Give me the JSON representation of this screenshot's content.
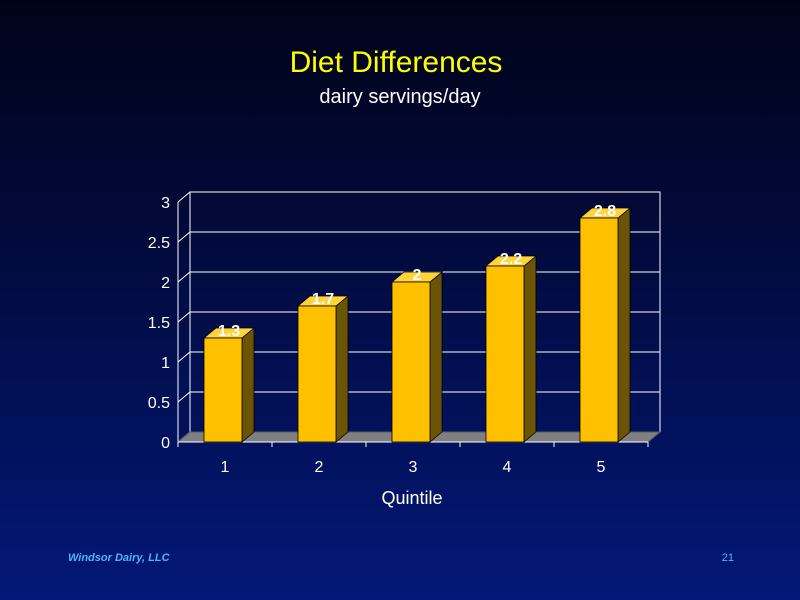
{
  "slide": {
    "footer_left": "Windsor Dairy, LLC",
    "page_number": "21"
  },
  "colors": {
    "title": "#ffff00",
    "bar_front": "#ffc000",
    "bar_side": "#6b5406",
    "bar_top": "#ffd33a",
    "floor": "#808080",
    "gridline": "#ffffff",
    "text": "#ffffff",
    "footer": "#4fb3ff"
  },
  "chart_data": {
    "type": "bar",
    "title": "Diet Differences",
    "subtitle": "dairy servings/day",
    "xlabel": "Quintile",
    "ylabel": "",
    "categories": [
      "1",
      "2",
      "3",
      "4",
      "5"
    ],
    "values": [
      1.3,
      1.7,
      2,
      2.2,
      2.8
    ],
    "data_labels": [
      "1.3",
      "1.7",
      "2",
      "2.2",
      "2.8"
    ],
    "ylim": [
      0,
      3
    ],
    "yticks": [
      0,
      0.5,
      1,
      1.5,
      2,
      2.5,
      3
    ],
    "ytick_labels": [
      "0",
      "0.5",
      "1",
      "1.5",
      "2",
      "2.5",
      "3"
    ],
    "grid": true,
    "style": "3d",
    "legend": "none"
  }
}
